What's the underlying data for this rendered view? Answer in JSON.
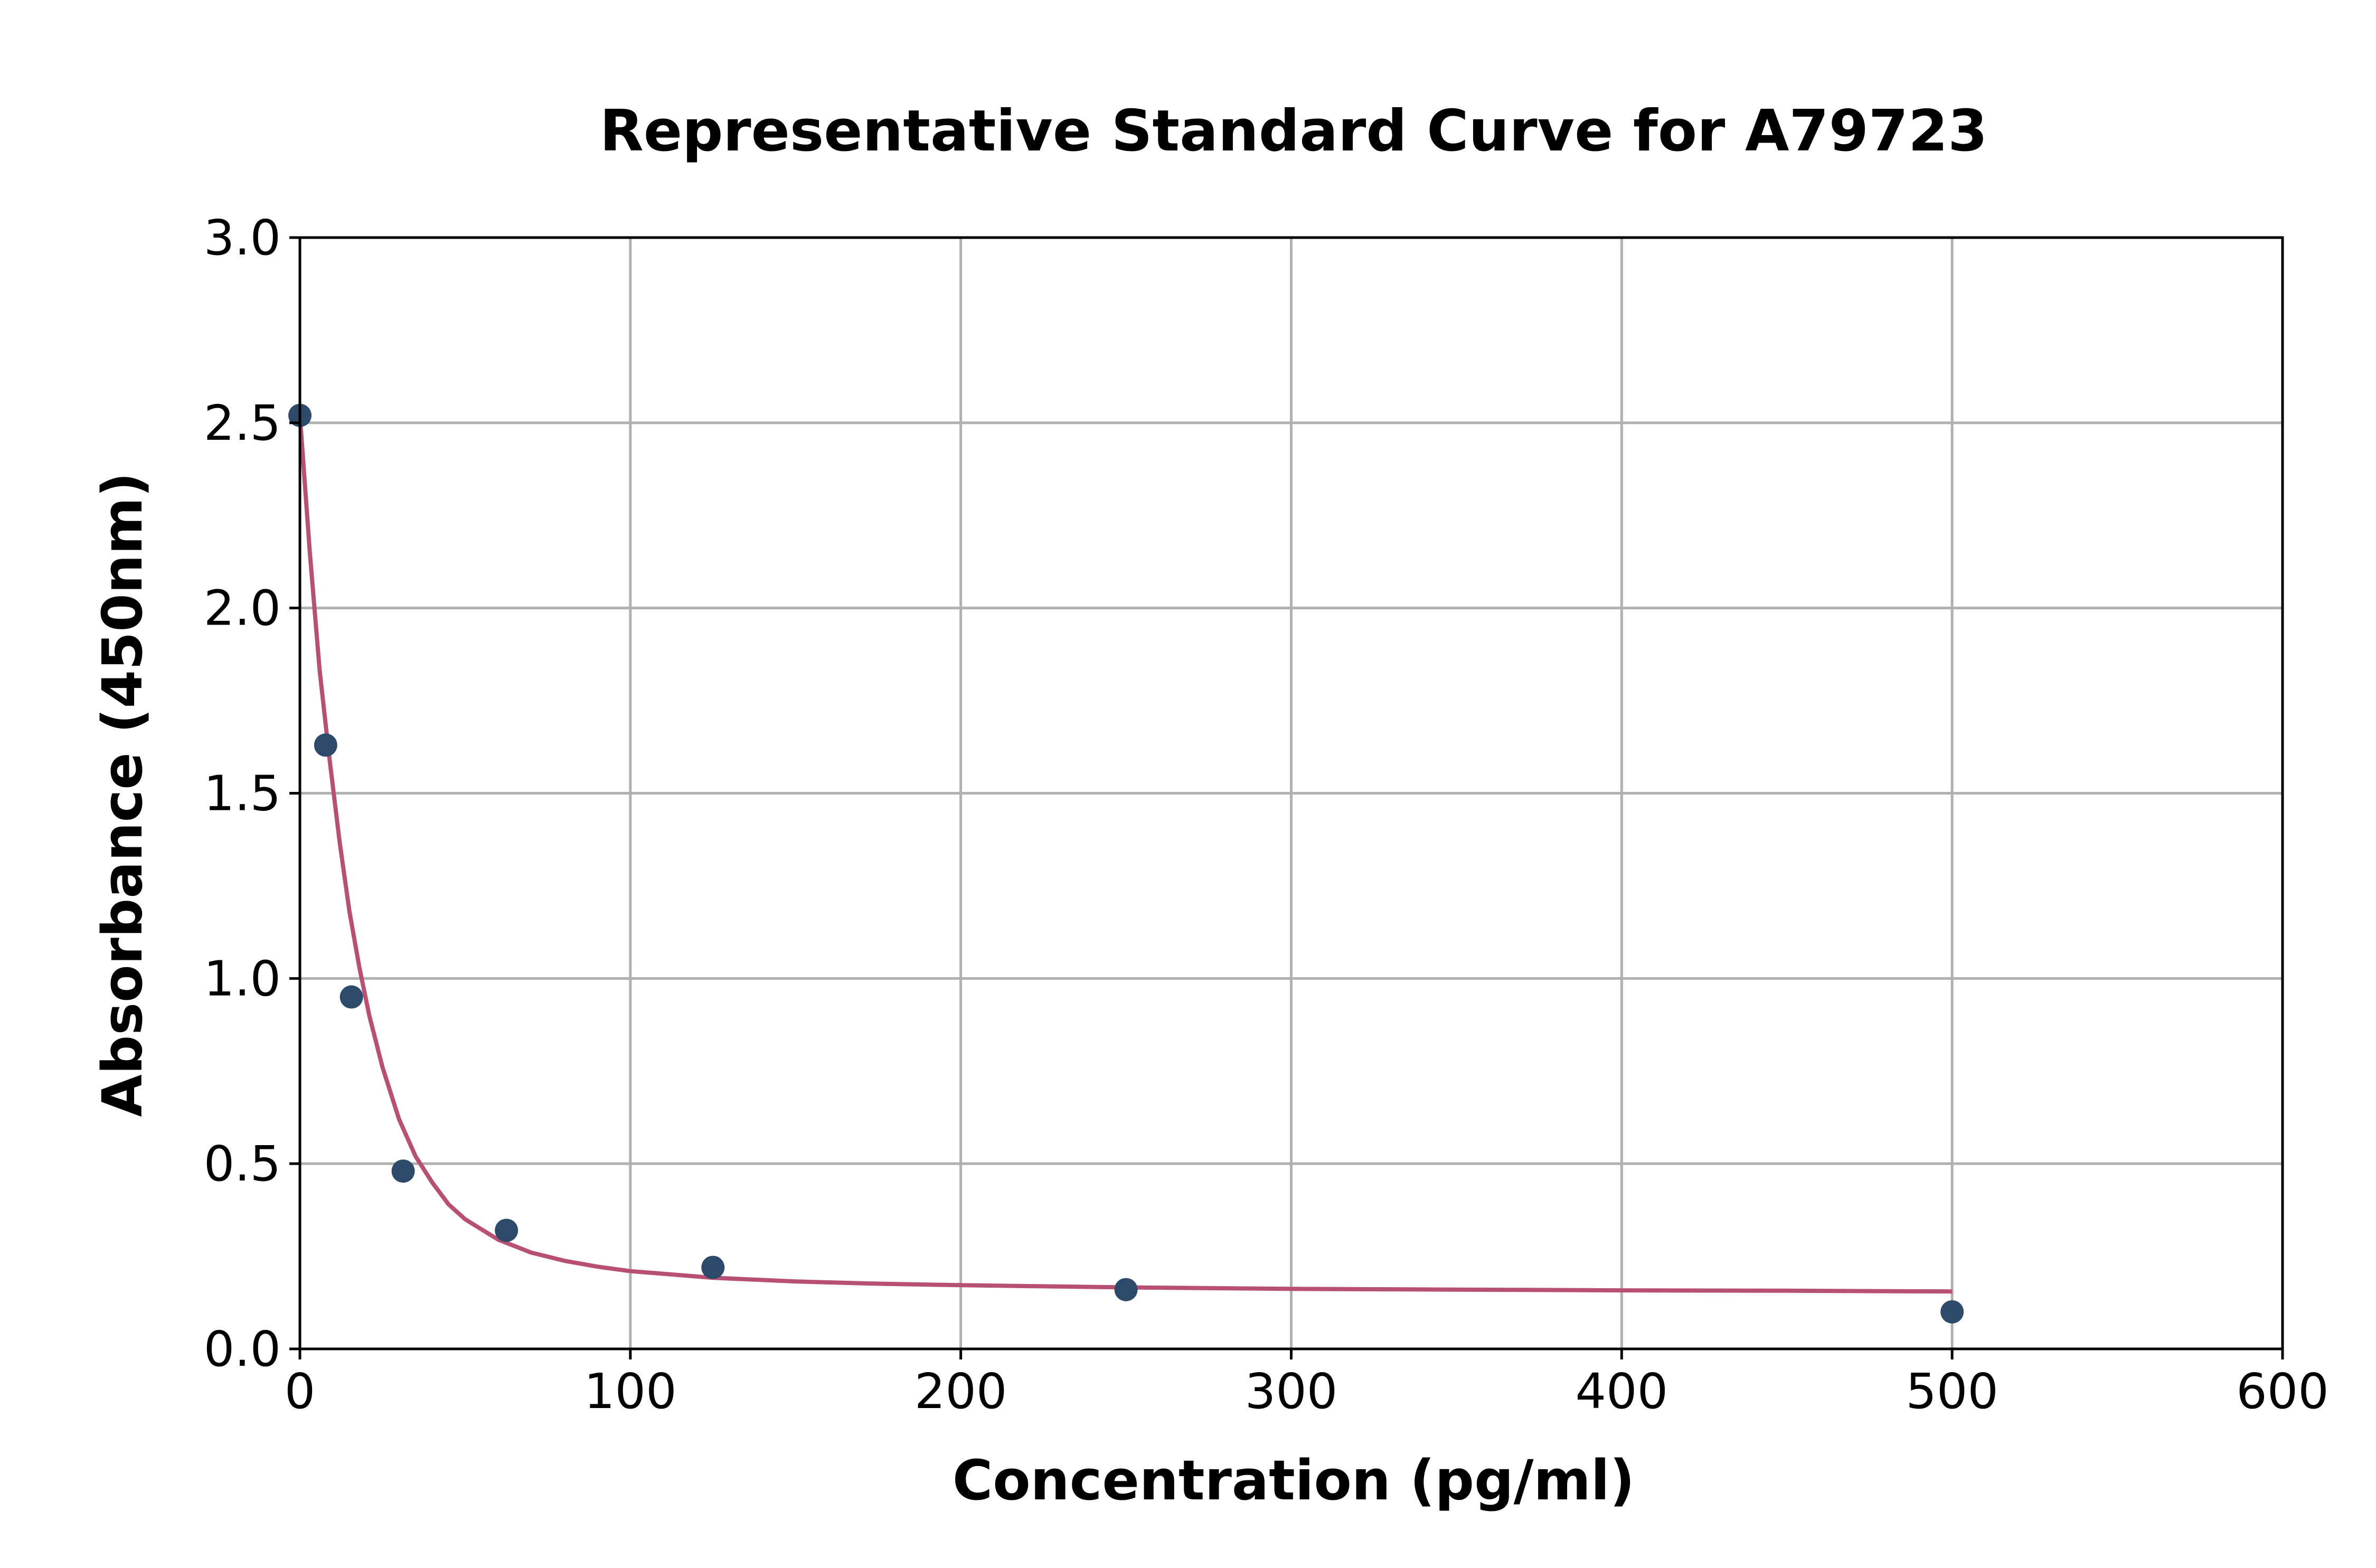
{
  "chart_data": {
    "type": "scatter",
    "title": "Representative Standard Curve for A79723",
    "xlabel": "Concentration (pg/ml)",
    "ylabel": "Absorbance (450nm)",
    "xlim": [
      0,
      600
    ],
    "ylim": [
      0,
      3.0
    ],
    "xticks": [
      0,
      100,
      200,
      300,
      400,
      500,
      600
    ],
    "xtick_labels": [
      "0",
      "100",
      "200",
      "300",
      "400",
      "500",
      "600"
    ],
    "yticks": [
      0,
      0.5,
      1.0,
      1.5,
      2.0,
      2.5,
      3.0
    ],
    "ytick_labels": [
      "0.0",
      "0.5",
      "1.0",
      "1.5",
      "2.0",
      "2.5",
      "3.0"
    ],
    "grid": true,
    "points": {
      "x": [
        0,
        7.8,
        15.6,
        31.25,
        62.5,
        125,
        250,
        500
      ],
      "y": [
        2.52,
        1.63,
        0.95,
        0.48,
        0.32,
        0.22,
        0.16,
        0.1
      ]
    },
    "fit_curve": {
      "x": [
        0,
        3,
        6,
        9,
        12,
        15,
        18,
        21,
        25,
        30,
        35,
        40,
        45,
        50,
        60,
        70,
        80,
        90,
        100,
        125,
        150,
        175,
        200,
        250,
        300,
        350,
        400,
        450,
        500
      ],
      "y": [
        2.52,
        2.15,
        1.83,
        1.59,
        1.37,
        1.18,
        1.03,
        0.9,
        0.76,
        0.62,
        0.52,
        0.45,
        0.39,
        0.35,
        0.295,
        0.26,
        0.238,
        0.222,
        0.21,
        0.192,
        0.182,
        0.176,
        0.172,
        0.166,
        0.162,
        0.16,
        0.158,
        0.157,
        0.155
      ]
    },
    "point_color": "#2d4a6b",
    "curve_color": "#b84f74"
  }
}
